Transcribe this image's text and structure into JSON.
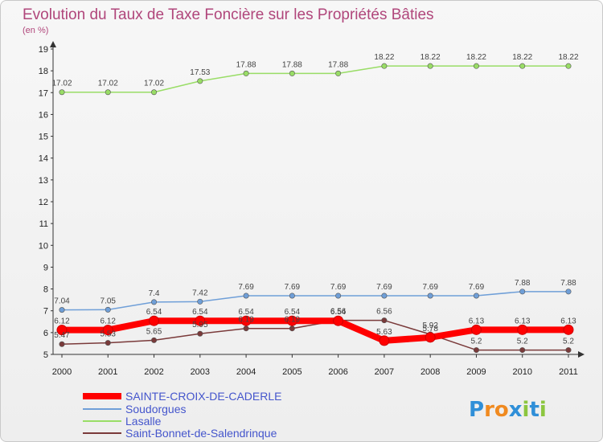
{
  "chart_data": {
    "type": "line",
    "title": "Evolution du Taux de Taxe Foncière sur les Propriétés Bâties",
    "unit_label": "(en %)",
    "x": [
      "2000",
      "2001",
      "2002",
      "2003",
      "2004",
      "2005",
      "2006",
      "2007",
      "2008",
      "2009",
      "2010",
      "2011"
    ],
    "ylim": [
      5,
      19
    ],
    "yticks": [
      "5",
      "6",
      "7",
      "8",
      "9",
      "10",
      "11",
      "12",
      "13",
      "14",
      "15",
      "16",
      "17",
      "18",
      "19"
    ],
    "grid": false,
    "series": [
      {
        "name": "SAINTE-CROIX-DE-CADERLE",
        "color": "#ff0000",
        "values": [
          6.12,
          6.12,
          6.54,
          6.54,
          6.54,
          6.54,
          6.54,
          5.63,
          5.78,
          6.13,
          6.13,
          6.13
        ],
        "labels": [
          "6.12",
          "6.12",
          "6.54",
          "6.54",
          "6.54",
          "6.54",
          "6.54",
          "5.63",
          "5.78",
          "6.13",
          "6.13",
          "6.13"
        ]
      },
      {
        "name": "Soudorgues",
        "color": "#6f9fd8",
        "values": [
          7.04,
          7.05,
          7.4,
          7.42,
          7.69,
          7.69,
          7.69,
          7.69,
          7.69,
          7.69,
          7.88,
          7.88
        ],
        "labels": [
          "7.04",
          "7.05",
          "7.4",
          "7.42",
          "7.69",
          "7.69",
          "7.69",
          "7.69",
          "7.69",
          "7.69",
          "7.88",
          "7.88"
        ]
      },
      {
        "name": "Lasalle",
        "color": "#99dd66",
        "values": [
          17.02,
          17.02,
          17.02,
          17.53,
          17.88,
          17.88,
          17.88,
          18.22,
          18.22,
          18.22,
          18.22,
          18.22
        ],
        "labels": [
          "17.02",
          "17.02",
          "17.02",
          "17.53",
          "17.88",
          "17.88",
          "17.88",
          "18.22",
          "18.22",
          "18.22",
          "18.22",
          "18.22"
        ]
      },
      {
        "name": "Saint-Bonnet-de-Salendrinque",
        "color": "#7a3a3a",
        "values": [
          5.47,
          5.53,
          5.65,
          5.95,
          6.19,
          6.19,
          6.56,
          6.56,
          5.92,
          5.2,
          5.2,
          5.2
        ],
        "labels": [
          "5.47",
          "5.53",
          "5.65",
          "5.95",
          "6.19",
          "6.19",
          "6.56",
          "6.56",
          "5.92",
          "5.2",
          "5.2",
          "5.2"
        ]
      }
    ],
    "legend_position": "bottom-left"
  },
  "logo": {
    "text": "Proxiti",
    "letters": [
      "P",
      "r",
      "o",
      "x",
      "i",
      "t",
      "i"
    ],
    "colors": [
      "#2f8fd8",
      "#f08a20",
      "#f08a20",
      "#2f8fd8",
      "#8cc63f",
      "#2f8fd8",
      "#8cc63f"
    ]
  }
}
